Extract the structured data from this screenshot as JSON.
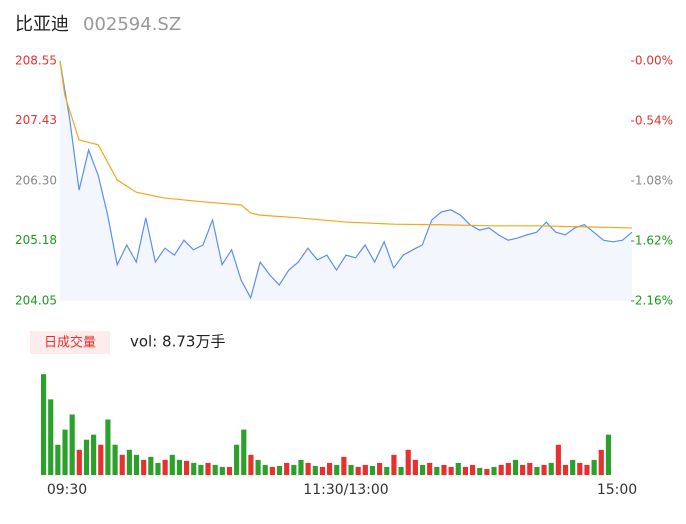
{
  "chart_data": {
    "type": "intraday",
    "title": "比亚迪",
    "subtitle": "002594.SZ",
    "xlim": [
      0,
      240
    ],
    "xticks": [
      {
        "value": 0,
        "label": "09:30"
      },
      {
        "value": 120,
        "label": "11:30/13:00"
      },
      {
        "value": 240,
        "label": "15:00"
      }
    ],
    "ylim": [
      204.05,
      208.55
    ],
    "yticks": [
      {
        "value": 208.55,
        "label": "208.55"
      },
      {
        "value": 207.43,
        "label": "207.43"
      },
      {
        "value": 206.3,
        "label": "206.30"
      },
      {
        "value": 205.18,
        "label": "205.18"
      },
      {
        "value": 204.05,
        "label": "204.05"
      }
    ],
    "ytick_colors": [
      "#e8312f",
      "#e8312f",
      "#888888",
      "#1a9a1a",
      "#1a9a1a"
    ],
    "y2lim": [
      -2.16,
      0
    ],
    "y2ticks": [
      {
        "value": 0,
        "label": "-0.00%"
      },
      {
        "value": -0.54,
        "label": "-0.54%"
      },
      {
        "value": -1.08,
        "label": "-1.08%"
      },
      {
        "value": -1.62,
        "label": "-1.62%"
      },
      {
        "value": -2.16,
        "label": "-2.16%"
      }
    ],
    "series": [
      {
        "color": "#5b8ff0",
        "area_color": "#f3f6fd",
        "x": [
          0,
          4,
          8,
          12,
          16,
          20,
          24,
          28,
          32,
          36,
          40,
          44,
          48,
          52,
          56,
          60,
          64,
          68,
          72,
          76,
          80,
          84,
          88,
          92,
          96,
          100,
          104,
          108,
          112,
          116,
          120,
          124,
          128,
          132,
          136,
          140,
          144,
          148,
          152,
          156,
          160,
          164,
          168,
          172,
          176,
          180,
          184,
          188,
          192,
          196,
          200,
          204,
          208,
          212,
          216,
          220,
          224,
          228,
          232,
          236,
          240
        ],
        "values": [
          208.55,
          207.48,
          206.13,
          206.88,
          206.41,
          205.66,
          204.73,
          205.1,
          204.78,
          205.61,
          204.78,
          205.04,
          204.91,
          205.19,
          205.01,
          205.1,
          205.57,
          204.73,
          205.01,
          204.44,
          204.11,
          204.78,
          204.54,
          204.35,
          204.63,
          204.78,
          205.04,
          204.82,
          204.91,
          204.63,
          204.91,
          204.86,
          205.1,
          204.78,
          205.16,
          204.67,
          204.91,
          205.01,
          205.1,
          205.57,
          205.72,
          205.76,
          205.66,
          205.48,
          205.38,
          205.42,
          205.29,
          205.19,
          205.23,
          205.29,
          205.34,
          205.53,
          205.34,
          205.29,
          205.42,
          205.48,
          205.34,
          205.19,
          205.16,
          205.19,
          205.34
        ]
      },
      {
        "color": "#f0a81c",
        "x": [
          0,
          2,
          8,
          16,
          24,
          32,
          44,
          60,
          76,
          80,
          84,
          100,
          120,
          140,
          160,
          180,
          200,
          220,
          240
        ],
        "values": [
          208.55,
          207.91,
          207.07,
          206.98,
          206.32,
          206.09,
          205.98,
          205.91,
          205.85,
          205.7,
          205.66,
          205.61,
          205.53,
          205.49,
          205.48,
          205.46,
          205.46,
          205.44,
          205.42
        ]
      }
    ],
    "volume": {
      "badge": "日成交量",
      "label": "vol: 8.73万手",
      "ylim": [
        0,
        6000
      ],
      "values": [
        5500,
        4125,
        1650,
        2475,
        3300,
        1375,
        1925,
        2200,
        1650,
        3025,
        1650,
        1100,
        1375,
        1100,
        825,
        990,
        660,
        825,
        1100,
        825,
        770,
        660,
        550,
        660,
        550,
        440,
        440,
        1650,
        2475,
        1100,
        825,
        550,
        440,
        495,
        660,
        550,
        825,
        660,
        495,
        440,
        660,
        550,
        990,
        550,
        440,
        550,
        495,
        660,
        440,
        1100,
        440,
        1375,
        825,
        550,
        660,
        440,
        550,
        440,
        660,
        440,
        550,
        385,
        330,
        440,
        550,
        660,
        825,
        550,
        660,
        440,
        550,
        660,
        1650,
        550,
        825,
        660,
        550,
        825,
        1375,
        2200
      ],
      "colors": [
        "#2ba02b",
        "#2ba02b",
        "#2ba02b",
        "#2ba02b",
        "#2ba02b",
        "#e8312f",
        "#2ba02b",
        "#2ba02b",
        "#e8312f",
        "#2ba02b",
        "#2ba02b",
        "#e8312f",
        "#2ba02b",
        "#2ba02b",
        "#e8312f",
        "#2ba02b",
        "#2ba02b",
        "#e8312f",
        "#2ba02b",
        "#2ba02b",
        "#e8312f",
        "#2ba02b",
        "#2ba02b",
        "#e8312f",
        "#2ba02b",
        "#2ba02b",
        "#e8312f",
        "#2ba02b",
        "#2ba02b",
        "#e8312f",
        "#2ba02b",
        "#2ba02b",
        "#e8312f",
        "#2ba02b",
        "#e8312f",
        "#2ba02b",
        "#2ba02b",
        "#e8312f",
        "#2ba02b",
        "#e8312f",
        "#e8312f",
        "#2ba02b",
        "#e8312f",
        "#2ba02b",
        "#e8312f",
        "#e8312f",
        "#2ba02b",
        "#e8312f",
        "#2ba02b",
        "#e8312f",
        "#2ba02b",
        "#e8312f",
        "#e8312f",
        "#2ba02b",
        "#e8312f",
        "#2ba02b",
        "#e8312f",
        "#e8312f",
        "#2ba02b",
        "#e8312f",
        "#e8312f",
        "#2ba02b",
        "#e8312f",
        "#2ba02b",
        "#e8312f",
        "#e8312f",
        "#2ba02b",
        "#e8312f",
        "#e8312f",
        "#2ba02b",
        "#e8312f",
        "#2ba02b",
        "#e8312f",
        "#e8312f",
        "#2ba02b",
        "#e8312f",
        "#e8312f",
        "#2ba02b",
        "#e8312f",
        "#2ba02b"
      ]
    }
  }
}
